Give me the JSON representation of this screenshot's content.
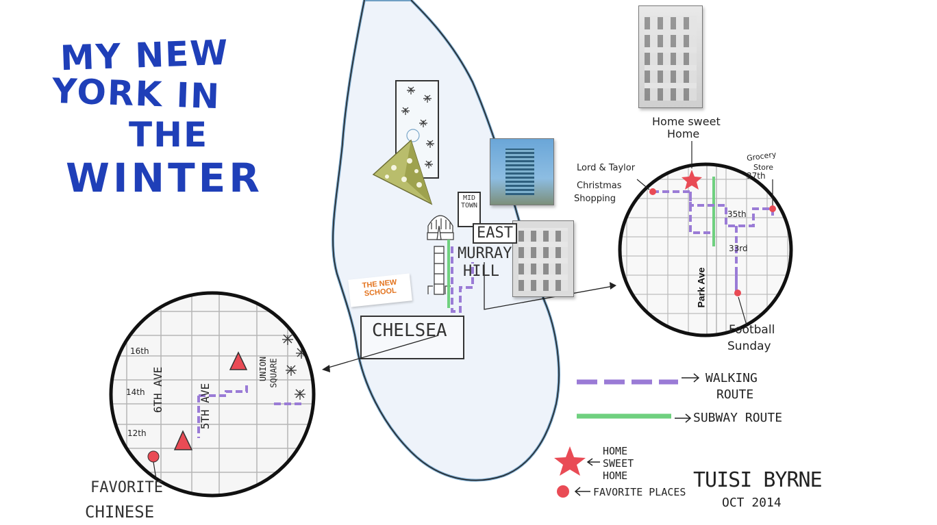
{
  "title": {
    "line1": "MY NEW",
    "line2": "YORK IN",
    "line3": "THE",
    "line4": "WINTER"
  },
  "neighborhoods": {
    "midtown": "MID TOWN",
    "east": "EAST",
    "murray": "MURRAY",
    "hill": "HILL",
    "chelsea": "CHELSEA"
  },
  "school_sign": {
    "line1": "THE NEW",
    "line2": "SCHOOL"
  },
  "home_label": {
    "line1": "Home sweet",
    "line2": "Home"
  },
  "right_inset": {
    "lord_taylor": "Lord & Taylor",
    "christmas": "Christmas",
    "shopping": "Shopping",
    "grocery": "Grocery",
    "store": "Store",
    "street_37": "37th",
    "street_35": "35th",
    "street_33": "33rd",
    "park_ave": "Park Ave",
    "football": "Football",
    "sunday": "Sunday"
  },
  "left_inset": {
    "street_16": "16th",
    "street_14": "14th",
    "street_12": "12th",
    "sixth_ave": "6TH AVE",
    "fifth_ave": "5TH AVE",
    "union": "UNION",
    "square": "SQUARE",
    "favorite": "FAVORITE",
    "chinese": "CHINESE"
  },
  "legend": {
    "walking_1": "WALKING",
    "walking_2": "ROUTE",
    "subway": "SUBWAY ROUTE",
    "home_1": "HOME",
    "home_2": "SWEET",
    "home_3": "HOME",
    "favorite": "FAVORITE PLACES"
  },
  "signature": {
    "name": "TUISI BYRNE",
    "date": "OCT 2014"
  },
  "colors": {
    "title_blue": "#1f3fb8",
    "walking_purple": "#9a7bd6",
    "subway_green": "#6fd07f",
    "marker_red": "#e94b55",
    "water_outline": "#6f9fc4",
    "island_fill": "#eef3fa"
  }
}
